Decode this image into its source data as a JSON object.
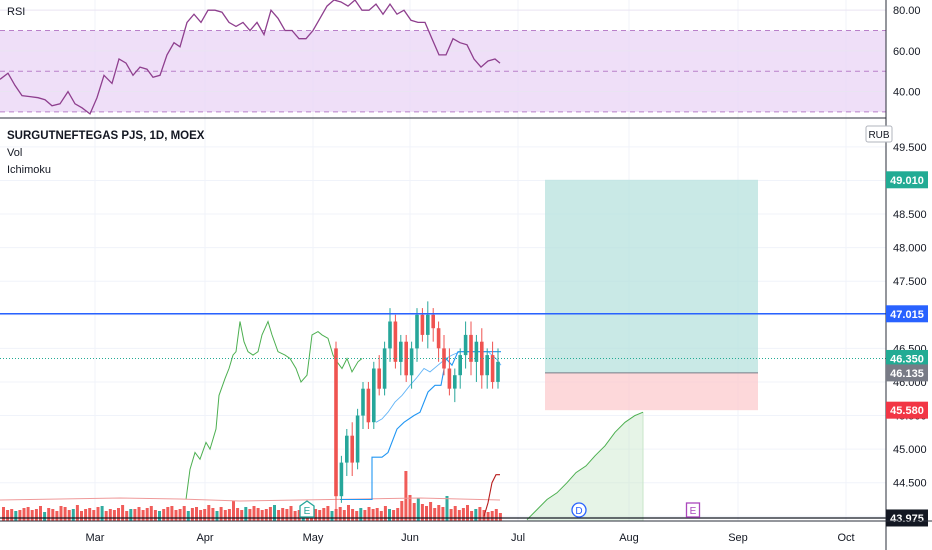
{
  "chart_data": [
    {
      "type": "line",
      "title": "RSI",
      "y_ticks": [
        "80.00",
        "60.00",
        "40.00"
      ],
      "ylim": [
        27,
        85
      ],
      "band": [
        30,
        70
      ],
      "midline": 50,
      "colors": {
        "line": "#8e3f8e",
        "band": "#ead4f6",
        "level": "#b980c9"
      },
      "points": [
        [
          0,
          46
        ],
        [
          8,
          49
        ],
        [
          15,
          43
        ],
        [
          22,
          38
        ],
        [
          30,
          37.5
        ],
        [
          38,
          37
        ],
        [
          45,
          36
        ],
        [
          52,
          33
        ],
        [
          60,
          34
        ],
        [
          68,
          40
        ],
        [
          75,
          34
        ],
        [
          82,
          32
        ],
        [
          90,
          29
        ],
        [
          97,
          37
        ],
        [
          104,
          48
        ],
        [
          112,
          44
        ],
        [
          119,
          56
        ],
        [
          126,
          54
        ],
        [
          133,
          48
        ],
        [
          140,
          52
        ],
        [
          147,
          51
        ],
        [
          153,
          47
        ],
        [
          160,
          48
        ],
        [
          167,
          58
        ],
        [
          174,
          64
        ],
        [
          180,
          62
        ],
        [
          187,
          74
        ],
        [
          194,
          78
        ],
        [
          201,
          74
        ],
        [
          208,
          80
        ],
        [
          215,
          80
        ],
        [
          222,
          79
        ],
        [
          229,
          74
        ],
        [
          236,
          72
        ],
        [
          243,
          74
        ],
        [
          250,
          70
        ],
        [
          257,
          74
        ],
        [
          264,
          68
        ],
        [
          271,
          80
        ],
        [
          278,
          76
        ],
        [
          285,
          70
        ],
        [
          292,
          70
        ],
        [
          299,
          66
        ],
        [
          306,
          66
        ],
        [
          313,
          70
        ],
        [
          320,
          76
        ],
        [
          327,
          82
        ],
        [
          334,
          85
        ],
        [
          341,
          84
        ],
        [
          348,
          82
        ],
        [
          355,
          85
        ],
        [
          362,
          80
        ],
        [
          369,
          80
        ],
        [
          376,
          83
        ],
        [
          383,
          78
        ],
        [
          390,
          83
        ],
        [
          397,
          78
        ],
        [
          404,
          80
        ],
        [
          411,
          75
        ],
        [
          418,
          74
        ],
        [
          425,
          74
        ],
        [
          432,
          66
        ],
        [
          439,
          58
        ],
        [
          446,
          58
        ],
        [
          453,
          66
        ],
        [
          460,
          64
        ],
        [
          467,
          63
        ],
        [
          474,
          56
        ],
        [
          481,
          52
        ],
        [
          488,
          55
        ],
        [
          495,
          56
        ],
        [
          500,
          54
        ]
      ]
    },
    {
      "type": "candlestick",
      "title": "SURGUTNEFTEGAS PJS, 1D, MOEX",
      "indicators": [
        "Vol",
        "Ichimoku"
      ],
      "currency": "RUB",
      "x_ticks": [
        "Mar",
        "Apr",
        "May",
        "Jun",
        "Jul",
        "Aug",
        "Sep",
        "Oct"
      ],
      "y_ticks": [
        "49.500",
        "49.000",
        "48.500",
        "48.000",
        "47.500",
        "47.000",
        "46.500",
        "46.000",
        "45.500",
        "45.000",
        "44.500",
        "44.000"
      ],
      "ylim": [
        43.93,
        49.93
      ],
      "price_labels": [
        {
          "text": "49.010",
          "value": 49.01,
          "color": "#22ab94"
        },
        {
          "text": "47.015",
          "value": 47.015,
          "color": "#2962ff"
        },
        {
          "text": "46.350",
          "value": 46.35,
          "color": "#22ab94"
        },
        {
          "text": "46.135",
          "value": 46.135,
          "color": "#787b86"
        },
        {
          "text": "45.580",
          "value": 45.58,
          "color": "#f23645"
        },
        {
          "text": "43.975",
          "value": 43.975,
          "color": "#131722"
        }
      ],
      "horizontal_line": {
        "value": 47.015,
        "color": "#2962ff"
      },
      "last_price_line": {
        "value": 46.35,
        "color": "#22ab94"
      },
      "position_tool": {
        "entry": 46.135,
        "target": 49.01,
        "stop": 45.58
      },
      "markers": [
        "E",
        "D",
        "E"
      ],
      "colors": {
        "up": "#26a69a",
        "down": "#ef5350",
        "span": "#4caf50",
        "kijun": "#2196f3",
        "lagging": "#b71c1c"
      },
      "candles": [
        [
          46.5,
          46.6,
          44.1,
          44.3
        ],
        [
          44.3,
          44.9,
          44.2,
          44.8
        ],
        [
          44.8,
          45.3,
          44.6,
          45.2
        ],
        [
          45.2,
          45.4,
          44.6,
          44.8
        ],
        [
          44.8,
          45.6,
          44.7,
          45.5
        ],
        [
          45.5,
          46.0,
          45.3,
          45.9
        ],
        [
          45.9,
          46.0,
          45.3,
          45.4
        ],
        [
          45.4,
          46.3,
          45.3,
          46.2
        ],
        [
          46.2,
          46.4,
          45.8,
          45.9
        ],
        [
          45.9,
          46.6,
          45.8,
          46.5
        ],
        [
          46.5,
          47.1,
          46.3,
          46.9
        ],
        [
          46.9,
          47.0,
          46.2,
          46.3
        ],
        [
          46.3,
          46.7,
          46.1,
          46.6
        ],
        [
          46.6,
          46.7,
          46.0,
          46.1
        ],
        [
          46.1,
          46.6,
          45.9,
          46.5
        ],
        [
          46.5,
          47.1,
          46.3,
          47.0
        ],
        [
          47.0,
          47.1,
          46.6,
          46.7
        ],
        [
          46.7,
          47.2,
          46.5,
          47.0
        ],
        [
          47.0,
          47.1,
          46.6,
          46.8
        ],
        [
          46.8,
          46.9,
          46.3,
          46.5
        ],
        [
          46.5,
          46.7,
          46.1,
          46.2
        ],
        [
          46.2,
          46.5,
          45.8,
          45.9
        ],
        [
          45.9,
          46.2,
          45.7,
          46.1
        ],
        [
          46.1,
          46.5,
          45.9,
          46.4
        ],
        [
          46.4,
          46.9,
          46.2,
          46.7
        ],
        [
          46.7,
          46.9,
          46.1,
          46.3
        ],
        [
          46.3,
          46.7,
          46.0,
          46.6
        ],
        [
          46.6,
          46.8,
          45.9,
          46.1
        ],
        [
          46.1,
          46.5,
          45.9,
          46.4
        ],
        [
          46.4,
          46.6,
          45.9,
          46.0
        ],
        [
          46.0,
          46.5,
          45.9,
          46.3
        ]
      ],
      "tenkan": [
        [
          376,
          45.4
        ],
        [
          382,
          45.45
        ],
        [
          388,
          45.55
        ],
        [
          395,
          45.7
        ],
        [
          402,
          45.8
        ],
        [
          410,
          45.95
        ],
        [
          416,
          46.05
        ],
        [
          424,
          46.2
        ],
        [
          430,
          46.15
        ],
        [
          438,
          46.25
        ],
        [
          446,
          46.35
        ],
        [
          452,
          46.4
        ],
        [
          460,
          46.45
        ],
        [
          470,
          46.45
        ],
        [
          478,
          46.45
        ],
        [
          488,
          46.45
        ],
        [
          496,
          46.35
        ],
        [
          501,
          46.25
        ]
      ],
      "kijun": [
        [
          340,
          44.25
        ],
        [
          372,
          44.25
        ],
        [
          372,
          44.88
        ],
        [
          382,
          44.88
        ],
        [
          388,
          44.95
        ],
        [
          397,
          45.3
        ],
        [
          404,
          45.4
        ],
        [
          414,
          45.5
        ],
        [
          420,
          45.55
        ],
        [
          428,
          45.85
        ],
        [
          435,
          45.95
        ],
        [
          441,
          45.95
        ],
        [
          446,
          46.35
        ],
        [
          452,
          46.25
        ],
        [
          458,
          46.45
        ],
        [
          466,
          46.45
        ],
        [
          480,
          46.45
        ],
        [
          490,
          46.45
        ],
        [
          501,
          46.45
        ]
      ],
      "span_line": [
        [
          186,
          44.25
        ],
        [
          190,
          44.7
        ],
        [
          195,
          44.95
        ],
        [
          200,
          44.85
        ],
        [
          206,
          45.1
        ],
        [
          210,
          45.0
        ],
        [
          216,
          45.3
        ],
        [
          219,
          45.8
        ],
        [
          225,
          46.05
        ],
        [
          229,
          46.2
        ],
        [
          233,
          46.4
        ],
        [
          236,
          46.45
        ],
        [
          240,
          46.9
        ],
        [
          244,
          46.6
        ],
        [
          248,
          46.45
        ],
        [
          253,
          46.4
        ],
        [
          258,
          46.45
        ],
        [
          262,
          46.7
        ],
        [
          268,
          46.9
        ],
        [
          272,
          46.7
        ],
        [
          278,
          46.45
        ],
        [
          285,
          46.4
        ],
        [
          290,
          46.35
        ],
        [
          296,
          46.2
        ],
        [
          301,
          46.0
        ],
        [
          307,
          46.1
        ],
        [
          312,
          46.7
        ],
        [
          318,
          46.75
        ],
        [
          322,
          46.7
        ],
        [
          328,
          46.65
        ],
        [
          333,
          46.4
        ],
        [
          337,
          46.3
        ],
        [
          342,
          46.2
        ],
        [
          347,
          46.35
        ],
        [
          352,
          46.15
        ],
        [
          358,
          46.3
        ],
        [
          362,
          46.35
        ]
      ],
      "cloud": [
        [
          527,
          43.95
        ],
        [
          537,
          44.1
        ],
        [
          547,
          44.25
        ],
        [
          557,
          44.35
        ],
        [
          567,
          44.5
        ],
        [
          576,
          44.65
        ],
        [
          586,
          44.75
        ],
        [
          595,
          44.9
        ],
        [
          605,
          45.05
        ],
        [
          615,
          45.25
        ],
        [
          625,
          45.4
        ],
        [
          635,
          45.5
        ],
        [
          643,
          45.55
        ]
      ],
      "lagging": [
        [
          484,
          44.0
        ],
        [
          488,
          44.2
        ],
        [
          492,
          44.5
        ],
        [
          496,
          44.62
        ],
        [
          500,
          44.62
        ]
      ],
      "volume": [
        1.4,
        1.1,
        1.2,
        1.0,
        1.1,
        1.3,
        1.4,
        1.1,
        1.2,
        1.5,
        0.9,
        1.3,
        1.2,
        1.0,
        1.5,
        1.4,
        1.1,
        1.2,
        1.6,
        1.0,
        1.2,
        1.3,
        1.1,
        1.4,
        1.5,
        1.0,
        1.2,
        1.1,
        1.3,
        1.6,
        1.0,
        1.2,
        1.2,
        1.4,
        1.1,
        1.3,
        1.5,
        1.1,
        1.0,
        1.2,
        1.4,
        1.5,
        1.1,
        1.2,
        1.5,
        1.0,
        1.3,
        1.4,
        1.1,
        1.2,
        1.6,
        1.3,
        1.0,
        1.4,
        1.1,
        1.2,
        2.0,
        1.3,
        1.1,
        1.4,
        1.2,
        1.5,
        1.3,
        1.1,
        1.2,
        1.4,
        1.6,
        1.1,
        1.3,
        1.2,
        1.5,
        1.0,
        1.1,
        1.3,
        1.4,
        1.0,
        1.2,
        1.1,
        1.3,
        1.5,
        1.0,
        1.2,
        1.4,
        1.1,
        1.6,
        1.2,
        1.0,
        1.3,
        1.1,
        1.4,
        1.2,
        1.3,
        1.0,
        1.5,
        1.2,
        1.1,
        1.3,
        2.0,
        5.0,
        2.6,
        1.8,
        2.3,
        1.7,
        1.5,
        1.9,
        1.3,
        1.6,
        1.4,
        2.5,
        1.2,
        1.5,
        1.1,
        1.3,
        1.6,
        1.0,
        1.2,
        1.4,
        1.1,
        0.9,
        1.0,
        1.2,
        0.8
      ]
    }
  ]
}
